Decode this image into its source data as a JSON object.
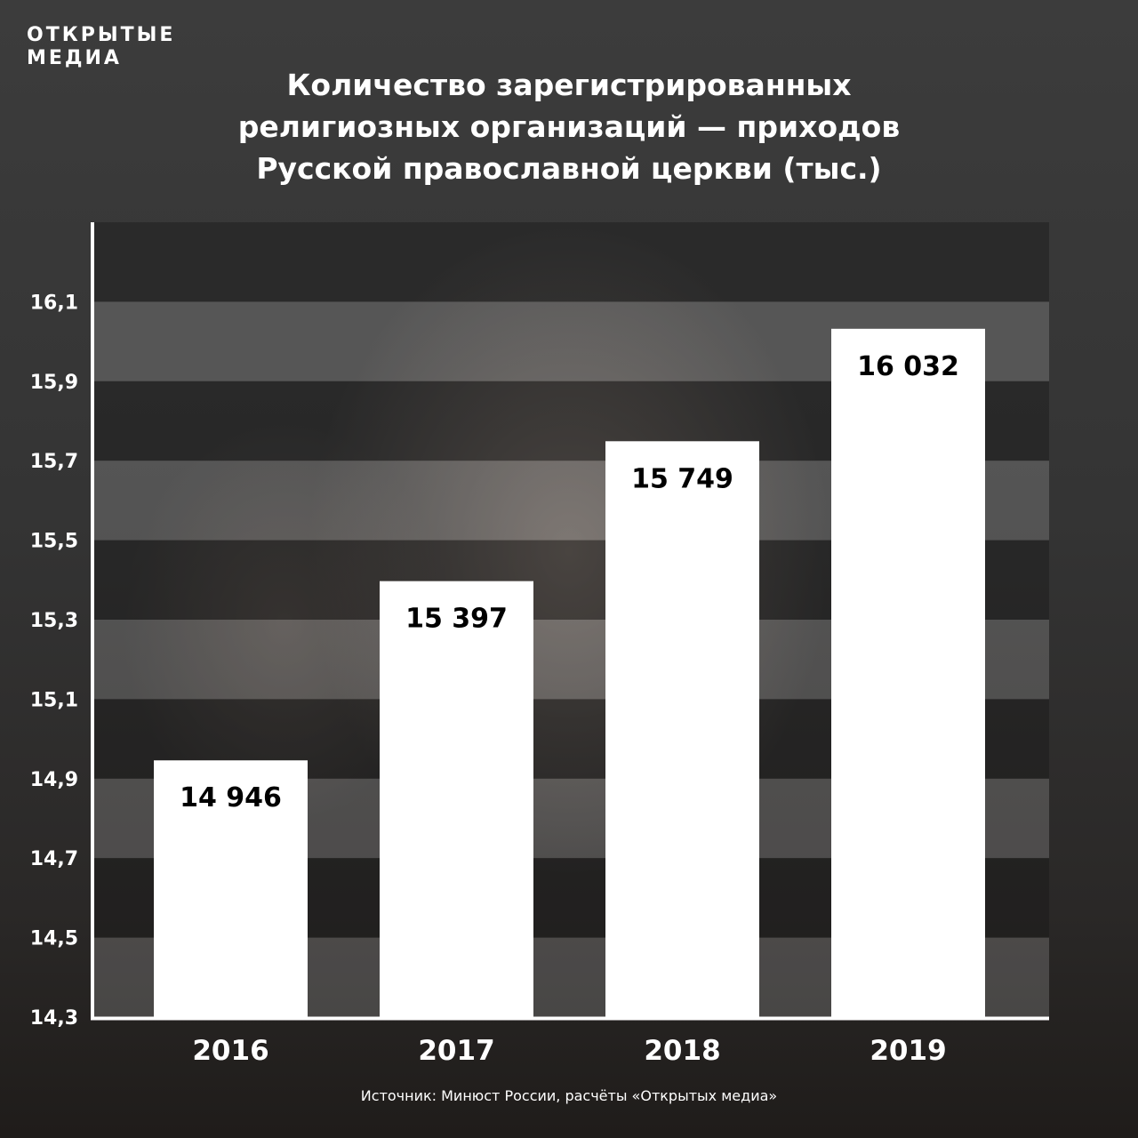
{
  "brand": {
    "line1": "ОТКРЫТЫЕ",
    "line2": "МЕДИА"
  },
  "title": "Количество зарегистрированных\nрелигиозных организаций — приходов\nРусской православной церкви (тыс.)",
  "source": "Источник: Минюст России, расчёты «Открытых медиа»",
  "colors": {
    "bar": "#ffffff",
    "bar_label": "#000000",
    "text": "#ffffff",
    "band_dark": "rgba(20,20,20,0.38)",
    "band_light": "rgba(200,200,200,0.22)"
  },
  "chart_data": {
    "type": "bar",
    "title": "Количество зарегистрированных религиозных организаций — приходов Русской православной церкви (тыс.)",
    "categories": [
      "2016",
      "2017",
      "2018",
      "2019"
    ],
    "values": [
      14.946,
      15.397,
      15.749,
      16.032
    ],
    "value_labels": [
      "14 946",
      "15 397",
      "15 749",
      "16 032"
    ],
    "y_ticks": [
      14.3,
      14.5,
      14.7,
      14.9,
      15.1,
      15.3,
      15.5,
      15.7,
      15.9,
      16.1
    ],
    "y_tick_labels": [
      "14,3",
      "14,5",
      "14,7",
      "14,9",
      "15,1",
      "15,3",
      "15,5",
      "15,7",
      "15,9",
      "16,1"
    ],
    "ylim": [
      14.3,
      16.3
    ],
    "xlabel": "",
    "ylabel": "",
    "grid": "alternating horizontal bands",
    "legend": "none"
  }
}
